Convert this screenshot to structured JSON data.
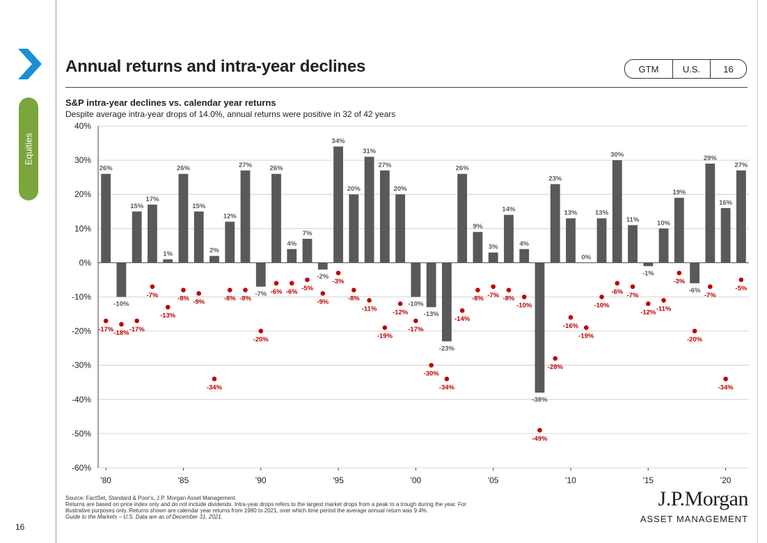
{
  "sidebar": {
    "section_label": "Equities",
    "page_number": "16"
  },
  "header": {
    "title": "Annual returns and intra-year declines",
    "badges": [
      "GTM",
      "U.S.",
      "16"
    ]
  },
  "chart_data": {
    "type": "bar",
    "title": "S&P intra-year declines vs. calendar year returns",
    "subtitle": "Despite average intra-year drops of 14.0%, annual returns were positive in 32 of 42 years",
    "x": [
      1980,
      1981,
      1982,
      1983,
      1984,
      1985,
      1986,
      1987,
      1988,
      1989,
      1990,
      1991,
      1992,
      1993,
      1994,
      1995,
      1996,
      1997,
      1998,
      1999,
      2000,
      2001,
      2002,
      2003,
      2004,
      2005,
      2006,
      2007,
      2008,
      2009,
      2010,
      2011,
      2012,
      2013,
      2014,
      2015,
      2016,
      2017,
      2018,
      2019,
      2020,
      2021
    ],
    "x_tick_labels": [
      "'80",
      "'85",
      "'90",
      "'95",
      "'00",
      "'05",
      "'10",
      "'15",
      "'20"
    ],
    "x_tick_years": [
      1980,
      1985,
      1990,
      1995,
      2000,
      2005,
      2010,
      2015,
      2020
    ],
    "ylim": [
      -60,
      40
    ],
    "y_ticks": [
      40,
      30,
      20,
      10,
      0,
      -10,
      -20,
      -30,
      -40,
      -50,
      -60
    ],
    "y_tick_labels": [
      "40%",
      "30%",
      "20%",
      "10%",
      "0%",
      "-10%",
      "-20%",
      "-30%",
      "-40%",
      "-50%",
      "-60%"
    ],
    "grid": true,
    "series": [
      {
        "values": [
          26,
          -10,
          15,
          17,
          1,
          26,
          15,
          2,
          12,
          27,
          -7,
          26,
          4,
          7,
          -2,
          34,
          20,
          31,
          27,
          20,
          -10,
          -13,
          -23,
          26,
          9,
          3,
          14,
          4,
          -38,
          23,
          13,
          0,
          13,
          30,
          11,
          -1,
          10,
          19,
          -6,
          29,
          16,
          27
        ],
        "labels": [
          "26%",
          "-10%",
          "15%",
          "17%",
          "1%",
          "26%",
          "15%",
          "2%",
          "12%",
          "27%",
          "-7%",
          "26%",
          "4%",
          "7%",
          "-2%",
          "34%",
          "20%",
          "31%",
          "27%",
          "20%",
          "-10%",
          "-13%",
          "-23%",
          "26%",
          "9%",
          "3%",
          "14%",
          "4%",
          "-38%",
          "23%",
          "13%",
          "0%",
          "13%",
          "30%",
          "11%",
          "-1%",
          "10%",
          "19%",
          "-6%",
          "29%",
          "16%",
          "27%"
        ]
      },
      {
        "values": [
          -17,
          -18,
          -17,
          -7,
          -13,
          -8,
          -9,
          -34,
          -8,
          -8,
          -20,
          -6,
          -6,
          -5,
          -9,
          -3,
          -8,
          -11,
          -19,
          -12,
          -17,
          -30,
          -34,
          -14,
          -8,
          -7,
          -8,
          -10,
          -49,
          -28,
          -16,
          -19,
          -10,
          -6,
          -7,
          -12,
          -11,
          -3,
          -20,
          -7,
          -34,
          -5
        ],
        "labels": [
          "-17%",
          "-18%",
          "-17%",
          "-7%",
          "-13%",
          "-8%",
          "-9%",
          "-34%",
          "-8%",
          "-8%",
          "-20%",
          "-6%",
          "-6%",
          "-5%",
          "-9%",
          "-3%",
          "-8%",
          "-11%",
          "-19%",
          "-12%",
          "-17%",
          "-30%",
          "-34%",
          "-14%",
          "-8%",
          "-7%",
          "-8%",
          "-10%",
          "-49%",
          "-28%",
          "-16%",
          "-19%",
          "-10%",
          "-6%",
          "-7%",
          "-12%",
          "-11%",
          "-3%",
          "-20%",
          "-7%",
          "-34%",
          "-5%"
        ]
      }
    ],
    "colors": {
      "bars": "#58595b",
      "dots": "#c00000",
      "dot_labels": "#c00000",
      "bar_labels": "#58595b"
    }
  },
  "footnote": {
    "line1": "Source: FactSet, Standard & Poor's, J.P. Morgan Asset Management.",
    "line2": "Returns are based on price index only and do not include dividends. Intra-year drops refers to the largest market drops from a peak to a trough during the year. For",
    "line3": "illustrative purposes only. Returns shown are calendar year returns from 1980 to 2021, over which time period the average annual return was 9.4%.",
    "line4": "Guide to the Markets – U.S. Data are as of December 31, 2021."
  },
  "logo": {
    "name": "J.P.Morgan",
    "sub": "ASSET MANAGEMENT"
  }
}
